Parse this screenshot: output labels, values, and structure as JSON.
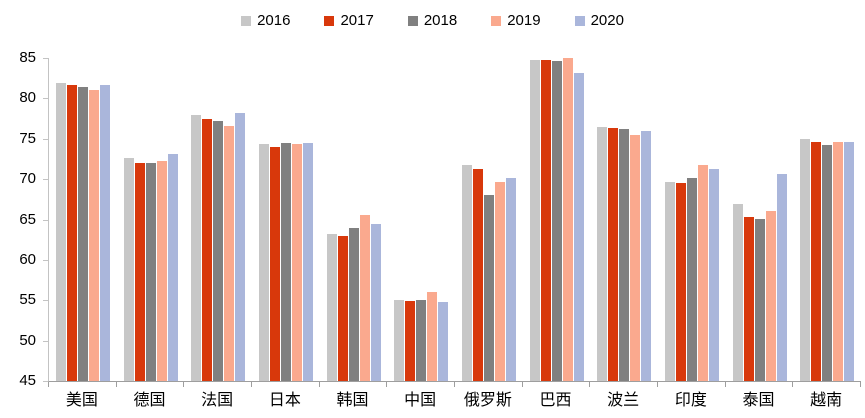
{
  "chart_data": {
    "type": "bar",
    "title": "",
    "xlabel": "",
    "ylabel": "",
    "ylim": [
      45,
      85
    ],
    "yticks": [
      45,
      50,
      55,
      60,
      65,
      70,
      75,
      80,
      85
    ],
    "grid": false,
    "legend_position": "top",
    "categories": [
      "美国",
      "德国",
      "法国",
      "日本",
      "韩国",
      "中国",
      "俄罗斯",
      "巴西",
      "波兰",
      "印度",
      "泰国",
      "越南"
    ],
    "series": [
      {
        "name": "2016",
        "color": "#C7C7C7",
        "values": [
          81.9,
          72.6,
          78.0,
          74.3,
          63.2,
          55.0,
          71.8,
          84.8,
          76.5,
          69.6,
          66.9,
          75.0
        ]
      },
      {
        "name": "2017",
        "color": "#D8380B",
        "values": [
          81.7,
          72.0,
          77.5,
          74.0,
          63.0,
          54.9,
          71.2,
          84.8,
          76.3,
          69.5,
          65.3,
          74.6
        ]
      },
      {
        "name": "2018",
        "color": "#808080",
        "values": [
          81.4,
          72.0,
          77.2,
          74.5,
          64.0,
          55.0,
          68.0,
          84.6,
          76.2,
          70.2,
          65.1,
          74.2
        ]
      },
      {
        "name": "2019",
        "color": "#FAA98E",
        "values": [
          81.1,
          72.2,
          76.6,
          74.3,
          65.6,
          56.0,
          69.7,
          85.0,
          75.5,
          71.7,
          66.0,
          74.6
        ]
      },
      {
        "name": "2020",
        "color": "#AAB6DB",
        "values": [
          81.7,
          73.1,
          78.2,
          74.5,
          64.5,
          54.8,
          70.2,
          83.2,
          76.0,
          71.2,
          70.7,
          74.6
        ]
      }
    ]
  }
}
